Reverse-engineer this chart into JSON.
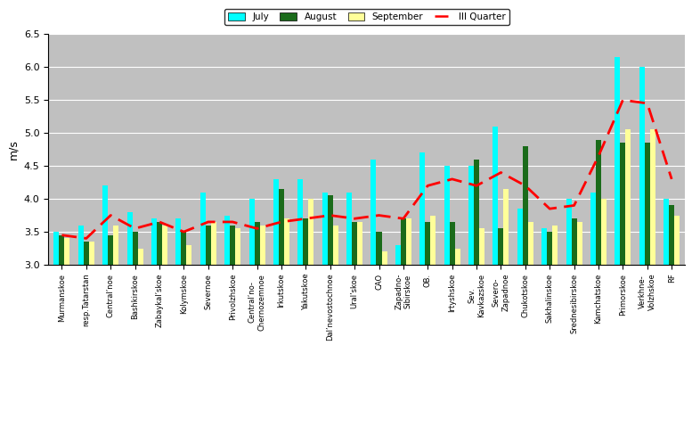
{
  "categories_display": [
    "Murmanskoe",
    "resp.Tatarstan",
    "Central’noe",
    "Bashkirskoe",
    "Zabaykal’skoe",
    "Kolymskoe",
    "Severnoe",
    "Privolzhskoe",
    "Central’no-\nChernozemnoe",
    "Irkutskoe",
    "Yakutskoe",
    "Dal’nevostochnoe",
    "Ural’skoe",
    "CAO",
    "Zapadno-\nSibirskoe",
    "OB.",
    "Irtyshskoe",
    "Sev.\nKavkazskoe",
    "Severo-\nZapadnoe",
    "Chukotskoe",
    "Sakhalinskoe",
    "Srednesibirskoe",
    "Kamchatskoe",
    "Primorskoe",
    "Verkhne-\nVolzhskoe",
    "RF"
  ],
  "july": [
    3.5,
    3.6,
    4.2,
    3.8,
    3.7,
    3.7,
    4.1,
    3.75,
    4.0,
    4.3,
    4.3,
    4.1,
    4.1,
    4.6,
    3.3,
    4.7,
    4.5,
    4.5,
    5.1,
    3.85,
    3.55,
    4.0,
    4.1,
    6.15,
    6.0,
    4.0
  ],
  "august": [
    3.45,
    3.35,
    3.45,
    3.5,
    3.65,
    3.5,
    3.6,
    3.6,
    3.65,
    4.15,
    3.7,
    4.05,
    3.65,
    3.5,
    3.7,
    3.65,
    3.65,
    4.6,
    3.55,
    4.8,
    3.5,
    3.7,
    4.9,
    4.85,
    4.85,
    3.9
  ],
  "september": [
    3.4,
    3.35,
    3.6,
    3.25,
    3.6,
    3.3,
    3.65,
    3.55,
    3.6,
    3.7,
    4.0,
    3.6,
    3.65,
    3.2,
    3.7,
    3.75,
    3.25,
    3.55,
    4.15,
    3.65,
    3.6,
    3.65,
    4.0,
    5.05,
    5.05,
    3.75
  ],
  "III_quarter": [
    3.45,
    3.4,
    3.75,
    3.55,
    3.65,
    3.5,
    3.65,
    3.65,
    3.55,
    3.65,
    3.7,
    3.75,
    3.7,
    3.75,
    3.7,
    4.2,
    4.3,
    4.2,
    4.4,
    4.2,
    3.85,
    3.9,
    4.65,
    5.5,
    5.45,
    4.3
  ],
  "bar_color_july": "#00FFFF",
  "bar_color_august": "#1A6B1A",
  "bar_color_september": "#FFFF99",
  "line_color": "#FF0000",
  "ylabel": "m/s",
  "ymin": 3.0,
  "ymax": 6.5,
  "yticks": [
    3.0,
    3.5,
    4.0,
    4.5,
    5.0,
    5.5,
    6.0,
    6.5
  ],
  "bg_color": "#C0C0C0",
  "bar_bottom": 3.0,
  "bar_width": 0.22,
  "bar_gap": 0.0
}
